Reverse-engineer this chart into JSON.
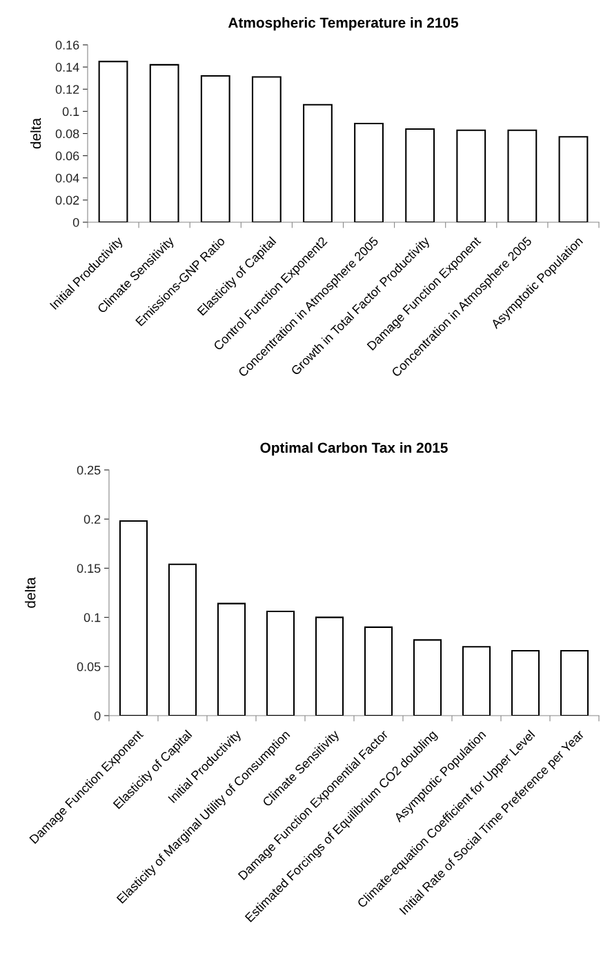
{
  "chart_data": [
    {
      "type": "bar",
      "title": "Atmospheric Temperature in 2105",
      "ylabel": "delta",
      "categories": [
        "Initial Productivity",
        "Climate Sensitivity",
        "Emissions-GNP Ratio",
        "Elasticity of Capital",
        "Control Function Exponent2",
        "Concentration in Atmosphere 2005",
        "Growth in Total Factor Productivity",
        "Damage Function Exponent",
        "Concentration in Atmosphere 2005",
        "Asymptotic Population"
      ],
      "values": [
        0.145,
        0.142,
        0.132,
        0.131,
        0.106,
        0.089,
        0.084,
        0.083,
        0.083,
        0.077
      ],
      "color": "#ffffff",
      "ylim": [
        0,
        0.16
      ],
      "yticks": [
        0,
        0.02,
        0.04,
        0.06,
        0.08,
        0.1,
        0.12,
        0.14,
        0.16
      ],
      "grid": false,
      "legend": false
    },
    {
      "type": "bar",
      "title": "Optimal Carbon Tax in 2015",
      "ylabel": "delta",
      "categories": [
        "Damage Function Exponent",
        "Elasticity of Capital",
        "Initial Productivity",
        "Elasticity of Marginal Utility of Consumption",
        "Climate Sensitivity",
        "Damage Function Exponential Factor",
        "Estimated Forcings of Equilibrium CO2 doubling",
        "Asymptotic Population",
        "Climate-equation Coefficient for Upper Level",
        "Initial Rate of Social Time Preference per Year"
      ],
      "values": [
        0.198,
        0.154,
        0.114,
        0.106,
        0.1,
        0.09,
        0.077,
        0.07,
        0.066,
        0.066
      ],
      "color": "#ffffff",
      "ylim": [
        0,
        0.25
      ],
      "yticks": [
        0,
        0.05,
        0.1,
        0.15,
        0.2,
        0.25
      ],
      "grid": false,
      "legend": false
    }
  ]
}
